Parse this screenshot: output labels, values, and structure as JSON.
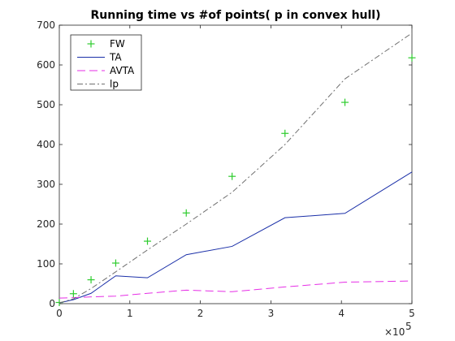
{
  "chart_data": {
    "type": "line",
    "title": "Running time vs #of points( p in convex hull)",
    "xlabel": "",
    "ylabel": "",
    "xlim": [
      0,
      500000
    ],
    "ylim": [
      0,
      700
    ],
    "x_ticks": [
      0,
      100000,
      200000,
      300000,
      400000,
      500000
    ],
    "x_tick_labels": [
      "0",
      "1",
      "2",
      "3",
      "4",
      "5"
    ],
    "x_exponent_label": "×10",
    "x_exponent": "5",
    "y_ticks": [
      0,
      100,
      200,
      300,
      400,
      500,
      600,
      700
    ],
    "y_tick_labels": [
      "0",
      "100",
      "200",
      "300",
      "400",
      "500",
      "600",
      "700"
    ],
    "grid": false,
    "legend_position": "top-left",
    "series": [
      {
        "name": "FW",
        "style": "marker-plus",
        "color": "#2ecc2e",
        "x": [
          0,
          20000,
          45000,
          80000,
          125000,
          180000,
          245000,
          320000,
          405000,
          500000
        ],
        "y": [
          3,
          25,
          60,
          102,
          157,
          228,
          320,
          428,
          506,
          618
        ]
      },
      {
        "name": "TA",
        "style": "solid",
        "color": "#1a2fa8",
        "x": [
          0,
          20000,
          45000,
          80000,
          125000,
          180000,
          245000,
          320000,
          405000,
          500000
        ],
        "y": [
          2,
          10,
          26,
          70,
          65,
          123,
          144,
          216,
          227,
          331
        ]
      },
      {
        "name": "AVTA",
        "style": "dashed",
        "color": "#e62ee6",
        "x": [
          0,
          20000,
          45000,
          80000,
          125000,
          180000,
          245000,
          320000,
          405000,
          500000
        ],
        "y": [
          14,
          15,
          17,
          19,
          26,
          34,
          30,
          42,
          54,
          57
        ]
      },
      {
        "name": "lp",
        "style": "dashdot",
        "color": "#707070",
        "x": [
          0,
          20000,
          45000,
          80000,
          125000,
          180000,
          245000,
          320000,
          405000,
          500000
        ],
        "y": [
          2,
          12,
          38,
          80,
          135,
          200,
          280,
          400,
          565,
          680
        ]
      }
    ]
  }
}
